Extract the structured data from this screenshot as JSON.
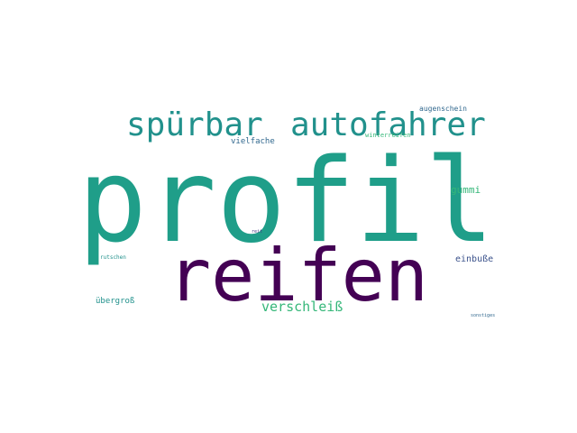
{
  "word_cloud": {
    "words": [
      {
        "text": "profil",
        "color": "#1f9e89"
      },
      {
        "text": "reifen",
        "color": "#440154"
      },
      {
        "text": "spürbar",
        "color": "#21918c"
      },
      {
        "text": "autofahrer",
        "color": "#21918c"
      },
      {
        "text": "verschleiß",
        "color": "#35b779"
      },
      {
        "text": "gummi",
        "color": "#35b779"
      },
      {
        "text": "einbuße",
        "color": "#3b528b"
      },
      {
        "text": "vielfache",
        "color": "#31688e"
      },
      {
        "text": "augenschein",
        "color": "#31688e"
      },
      {
        "text": "winterreifen",
        "color": "#35b779"
      },
      {
        "text": "übergroß",
        "color": "#21918c"
      },
      {
        "text": "rutschen",
        "color": "#21918c"
      },
      {
        "text": "reit",
        "color": "#443983"
      },
      {
        "text": "sonstiges",
        "color": "#31688e"
      }
    ]
  }
}
